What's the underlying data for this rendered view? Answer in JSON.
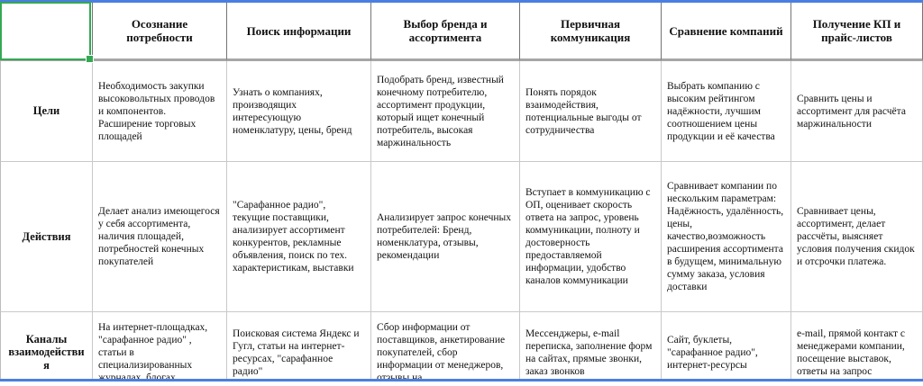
{
  "colors": {
    "selection_green": "#34a853",
    "frame_blue": "#4a7fe0",
    "header_border": "#757575",
    "body_border": "#c9c9c9"
  },
  "sheet": {
    "headers": [
      "",
      "Осознание потребности",
      "Поиск информации",
      "Выбор бренда и ассортимента",
      "Первичная коммуникация",
      "Сравнение компаний",
      "Получение КП и прайс-листов"
    ],
    "rows": [
      {
        "label": "Цели",
        "cells": [
          "Необходимость закупки высоковольтных проводов и компонентов. Расширение торговых площадей",
          "Узнать о компаниях, производящих интересующую номенклатуру, цены, бренд",
          "Подобрать бренд, известный конечному потребителю, ассортимент продукции, который ищет конечный потребитель, высокая маржинальность",
          "Понять порядок взаимодействия, потенциальные выгоды от сотрудничества",
          "Выбрать компанию с высоким рейтингом надёжности, лучшим соотношением цены продукции и её качества",
          "Сравнить цены и ассортимент для расчёта маржинальности"
        ]
      },
      {
        "label": "Действия",
        "cells": [
          "Делает анализ имеющегося у себя ассортимента, наличия площадей, потребностей конечных покупателей",
          "\"Сарафанное радио\", текущие поставщики, анализирует ассортимент конкурентов, рекламные объявления, поиск по тех. характеристикам, выставки",
          "Анализирует запрос конечных потребителей: Бренд, номенклатура, отзывы, рекомендации",
          "Вступает в коммуникацию с ОП, оценивает скорость ответа на запрос, уровень коммуникации, полноту и достоверность предоставляемой информации, удобство каналов коммуникации",
          "Сравнивает компании по нескольким параметрам: Надёжность, удалённость, цены, качество,возможность расширения ассортимента в будущем, минимальную сумму заказа, условия доставки",
          "Сравнивает цены, ассортимент, делает рассчёты, выясняет условия получения скидок и отсрочки платежа."
        ]
      },
      {
        "label": "Каналы взаимодействия",
        "cells": [
          "На интернет-площадках, \"сарафанное радио\" , статьи в специализированных журналах, блогах",
          "Поисковая система Яндекс и Гугл, статьи на интернет-ресурсах, \"сарафанное радио\"",
          "Сбор информации от поставщиков, анкетирование покупателей, сбор информации от менеджеров, отзывы на",
          "Мессенджеры, e-mail переписка, заполнение форм на сайтах, прямые звонки, заказ звонков",
          "Сайт, буклеты, \"сарафанное радио\", интернет-ресурсы",
          "e-mail, прямой контакт с менеджерами компании, посещение выставок, ответы на запрос"
        ]
      }
    ]
  }
}
